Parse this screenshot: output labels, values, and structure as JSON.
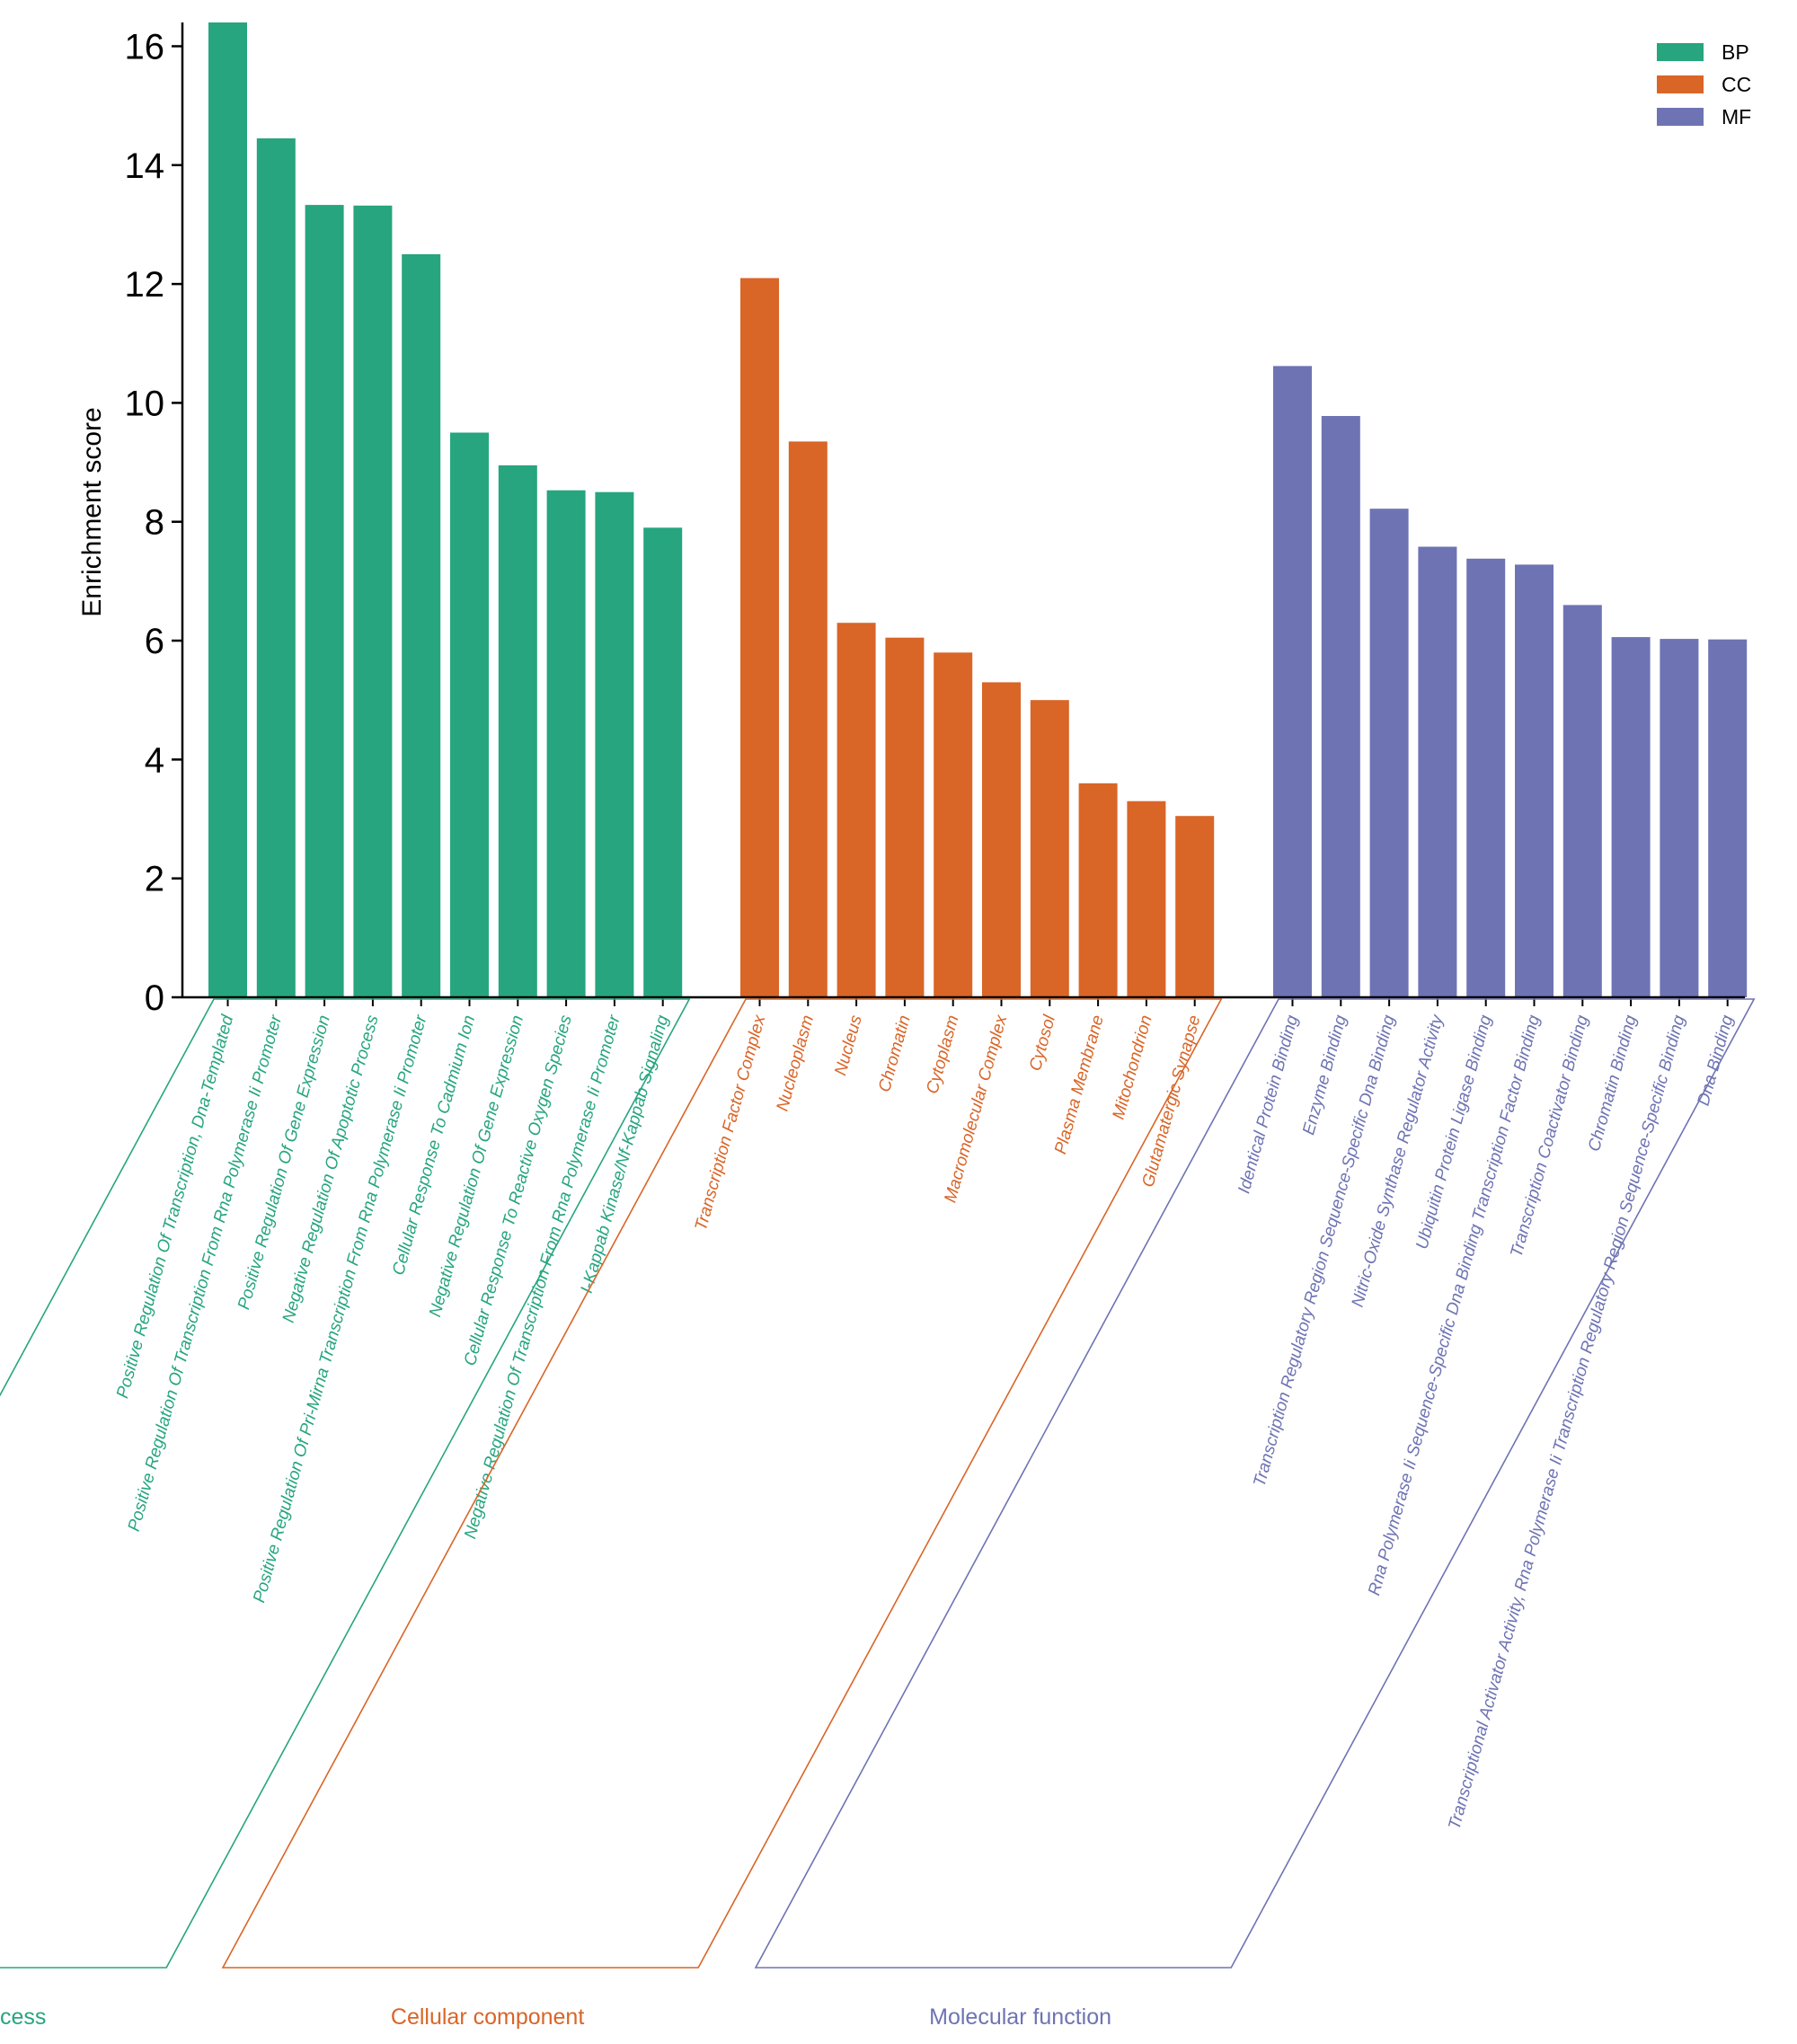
{
  "chart_data": {
    "type": "bar",
    "title": "",
    "xlabel": "",
    "ylabel": "Enrichment score",
    "ylim": [
      0,
      16.4
    ],
    "yticks": [
      0,
      2,
      4,
      6,
      8,
      10,
      12,
      14,
      16
    ],
    "legend": {
      "placement": "top-right",
      "entries": [
        {
          "key": "BP",
          "label": "BP",
          "color": "#26A57F"
        },
        {
          "key": "CC",
          "label": "CC",
          "color": "#D96527"
        },
        {
          "key": "MF",
          "label": "MF",
          "color": "#6E73B3"
        }
      ]
    },
    "groups": [
      {
        "key": "BP",
        "name": "Biological process",
        "color": "#26A57F",
        "categories": [
          "Positive Regulation Of Transcription, Dna-Templated",
          "Positive Regulation Of Transcription From Rna Polymerase Ii Promoter",
          "Positive Regulation Of Gene Expression",
          "Negative Regulation Of Apoptotic Process",
          "Positive Regulation Of Pri-Mirna Transcription From Rna Polymerase Ii Promoter",
          "Cellular Response To Cadmium Ion",
          "Negative Regulation Of Gene Expression",
          "Cellular Response To Reactive Oxygen Species",
          "Negative Regulation Of Transcription From Rna Polymerase Ii Promoter",
          "I-Kappab Kinase/Nf-Kappab Signaling"
        ],
        "values": [
          16.4,
          14.45,
          13.33,
          13.32,
          12.5,
          9.5,
          8.95,
          8.53,
          8.5,
          7.9
        ]
      },
      {
        "key": "CC",
        "name": "Cellular component",
        "color": "#D96527",
        "categories": [
          "Transcription Factor Complex",
          "Nucleoplasm",
          "Nucleus",
          "Chromatin",
          "Cytoplasm",
          "Macromolecular Complex",
          "Cytosol",
          "Plasma Membrane",
          "Mitochondrion",
          "Glutamatergic Synapse"
        ],
        "values": [
          12.1,
          9.35,
          6.3,
          6.05,
          5.8,
          5.3,
          5.0,
          3.6,
          3.3,
          3.05
        ]
      },
      {
        "key": "MF",
        "name": "Molecular function",
        "color": "#6E73B3",
        "categories": [
          "Identical Protein Binding",
          "Enzyme Binding",
          "Transcription Regulatory Region Sequence-Specific Dna Binding",
          "Nitric-Oxide Synthase Regulator Activity",
          "Ubiquitin Protein Ligase Binding",
          "Rna Polymerase Ii Sequence-Specific Dna Binding Transcription Factor Binding",
          "Transcription Coactivator Binding",
          "Chromatin Binding",
          "Transcriptional Activator Activity, Rna Polymerase Ii Transcription Regulatory Region Sequence-Specific Binding",
          "Dna Binding"
        ],
        "values": [
          10.62,
          9.78,
          8.22,
          7.58,
          7.38,
          7.28,
          6.6,
          6.06,
          6.03,
          6.02
        ]
      }
    ]
  }
}
